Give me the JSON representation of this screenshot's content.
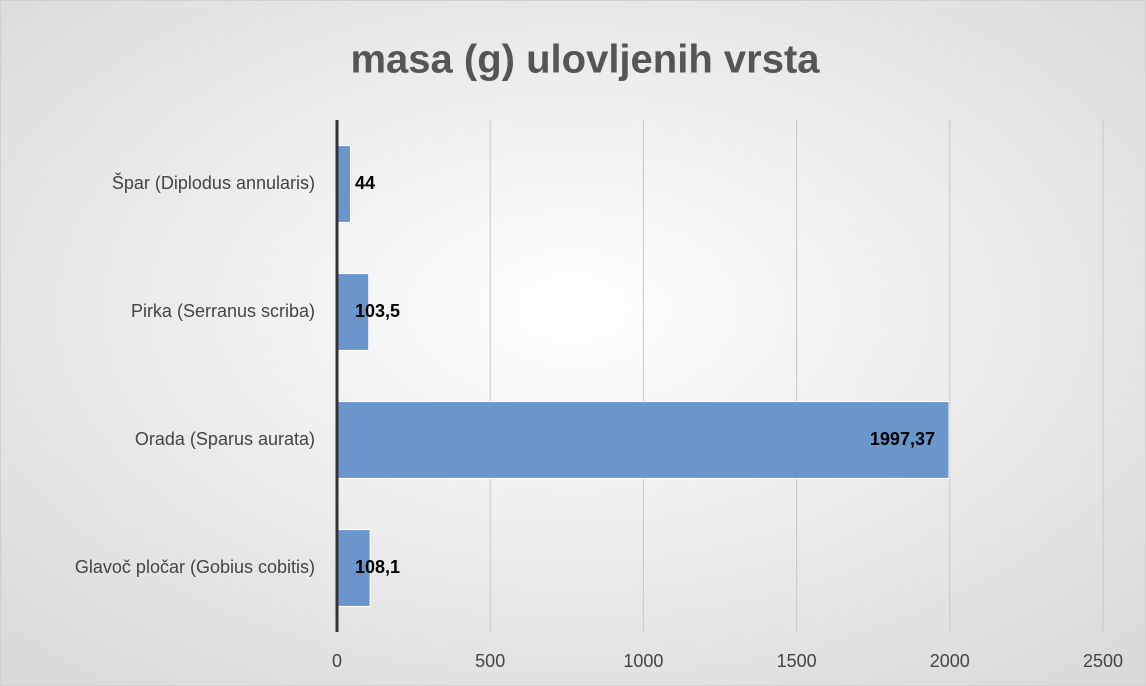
{
  "chart_data": {
    "type": "bar",
    "orientation": "horizontal",
    "title": "masa (g) ulovljenih vrsta",
    "categories": [
      "Špar (Diplodus annularis)",
      "Pirka (Serranus scriba)",
      "Orada (Sparus aurata)",
      "Glavoč pločar (Gobius cobitis)"
    ],
    "values": [
      44,
      103.5,
      1997.37,
      108.1
    ],
    "value_labels": [
      "44",
      "103,5",
      "1997,37",
      "108,1"
    ],
    "color": "#6a96cc",
    "xlim": [
      0,
      2500
    ],
    "xticks": [
      0,
      500,
      1000,
      1500,
      2000,
      2500
    ],
    "grid": true
  }
}
